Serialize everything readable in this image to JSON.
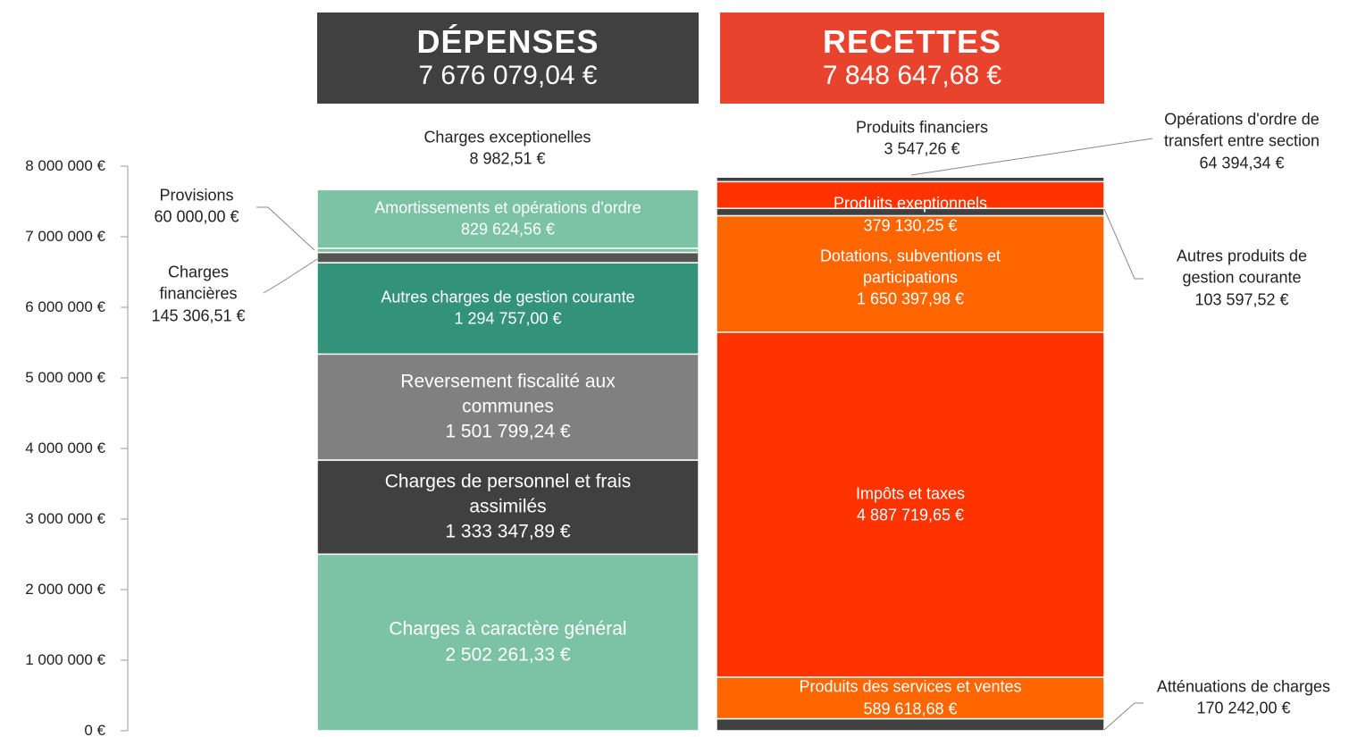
{
  "chart_data": {
    "type": "stacked_columns",
    "ylim": [
      0,
      8000000
    ],
    "yticks": [
      {
        "value": 0,
        "label": "0 €"
      },
      {
        "value": 1000000,
        "label": "1 000 000 €"
      },
      {
        "value": 2000000,
        "label": "2 000 000 €"
      },
      {
        "value": 3000000,
        "label": "3 000 000 €"
      },
      {
        "value": 4000000,
        "label": "4 000 000 €"
      },
      {
        "value": 5000000,
        "label": "5 000 000 €"
      },
      {
        "value": 6000000,
        "label": "6 000 000 €"
      },
      {
        "value": 7000000,
        "label": "7 000 000 €"
      },
      {
        "value": 8000000,
        "label": "8 000 000 €"
      }
    ],
    "columns": [
      {
        "title": "DÉPENSES",
        "color": "#404040",
        "total": 7676079.04,
        "total_label": "7 676 079,04 €",
        "segments": [
          {
            "name": "Charges à caractère général",
            "color": "#7bc3a4",
            "value": 2502261.33,
            "value_label": "2 502 261,33 €"
          },
          {
            "name": "Charges de personnel et frais assimilés",
            "color": "#404040",
            "value": 1333347.89,
            "value_label": "1 333 347,89 €"
          },
          {
            "name": "Reversement fiscalité aux communes",
            "color": "#808080",
            "value": 1501799.24,
            "value_label": "1 501 799,24 €"
          },
          {
            "name": "Autres charges de gestion courante",
            "color": "#33937a",
            "value": 1294757.0,
            "value_label": "1 294 757,00 €"
          },
          {
            "name": "Charges financières",
            "color": "#555555",
            "value": 145306.51,
            "value_label": "145 306,51 €"
          },
          {
            "name": "Provisions",
            "color": "#7bc3a4",
            "value": 60000.0,
            "value_label": "60 000,00 €"
          },
          {
            "name": "Amortissements et opérations d'ordre",
            "color": "#7bc3a4",
            "value": 829624.56,
            "value_label": "829 624,56 €"
          },
          {
            "name": "Charges exceptionelles",
            "color": "#404040",
            "value": 8982.51,
            "value_label": "8 982,51 €"
          }
        ]
      },
      {
        "title": "RECETTES",
        "color": "#e8432c",
        "total": 7848647.68,
        "total_label": "7 848 647,68 €",
        "segments": [
          {
            "name": "Atténuations de charges",
            "color": "#404040",
            "value": 170242.0,
            "value_label": "170 242,00 €"
          },
          {
            "name": "Produits des services et ventes",
            "color": "#ff6600",
            "value": 589618.68,
            "value_label": "589 618,68 €"
          },
          {
            "name": "Impôts et taxes",
            "color": "#ff3300",
            "value": 4887719.65,
            "value_label": "4 887 719,65 €"
          },
          {
            "name": "Dotations, subventions et participations",
            "color": "#ff6600",
            "value": 1650397.98,
            "value_label": "1 650 397,98 €"
          },
          {
            "name": "Autres produits de gestion courante",
            "color": "#404040",
            "value": 103597.52,
            "value_label": "103 597,52 €"
          },
          {
            "name": "Produits exeptionnels",
            "color": "#ff3300",
            "value": 379130.25,
            "value_label": "379 130,25 €"
          },
          {
            "name": "Opérations d'ordre de transfert entre section",
            "color": "#404040",
            "value": 64394.34,
            "value_label": "64 394,34 €"
          },
          {
            "name": "Produits financiers",
            "color": "#e8432c",
            "value": 3547.26,
            "value_label": "3 547,26 €"
          }
        ]
      }
    ]
  }
}
